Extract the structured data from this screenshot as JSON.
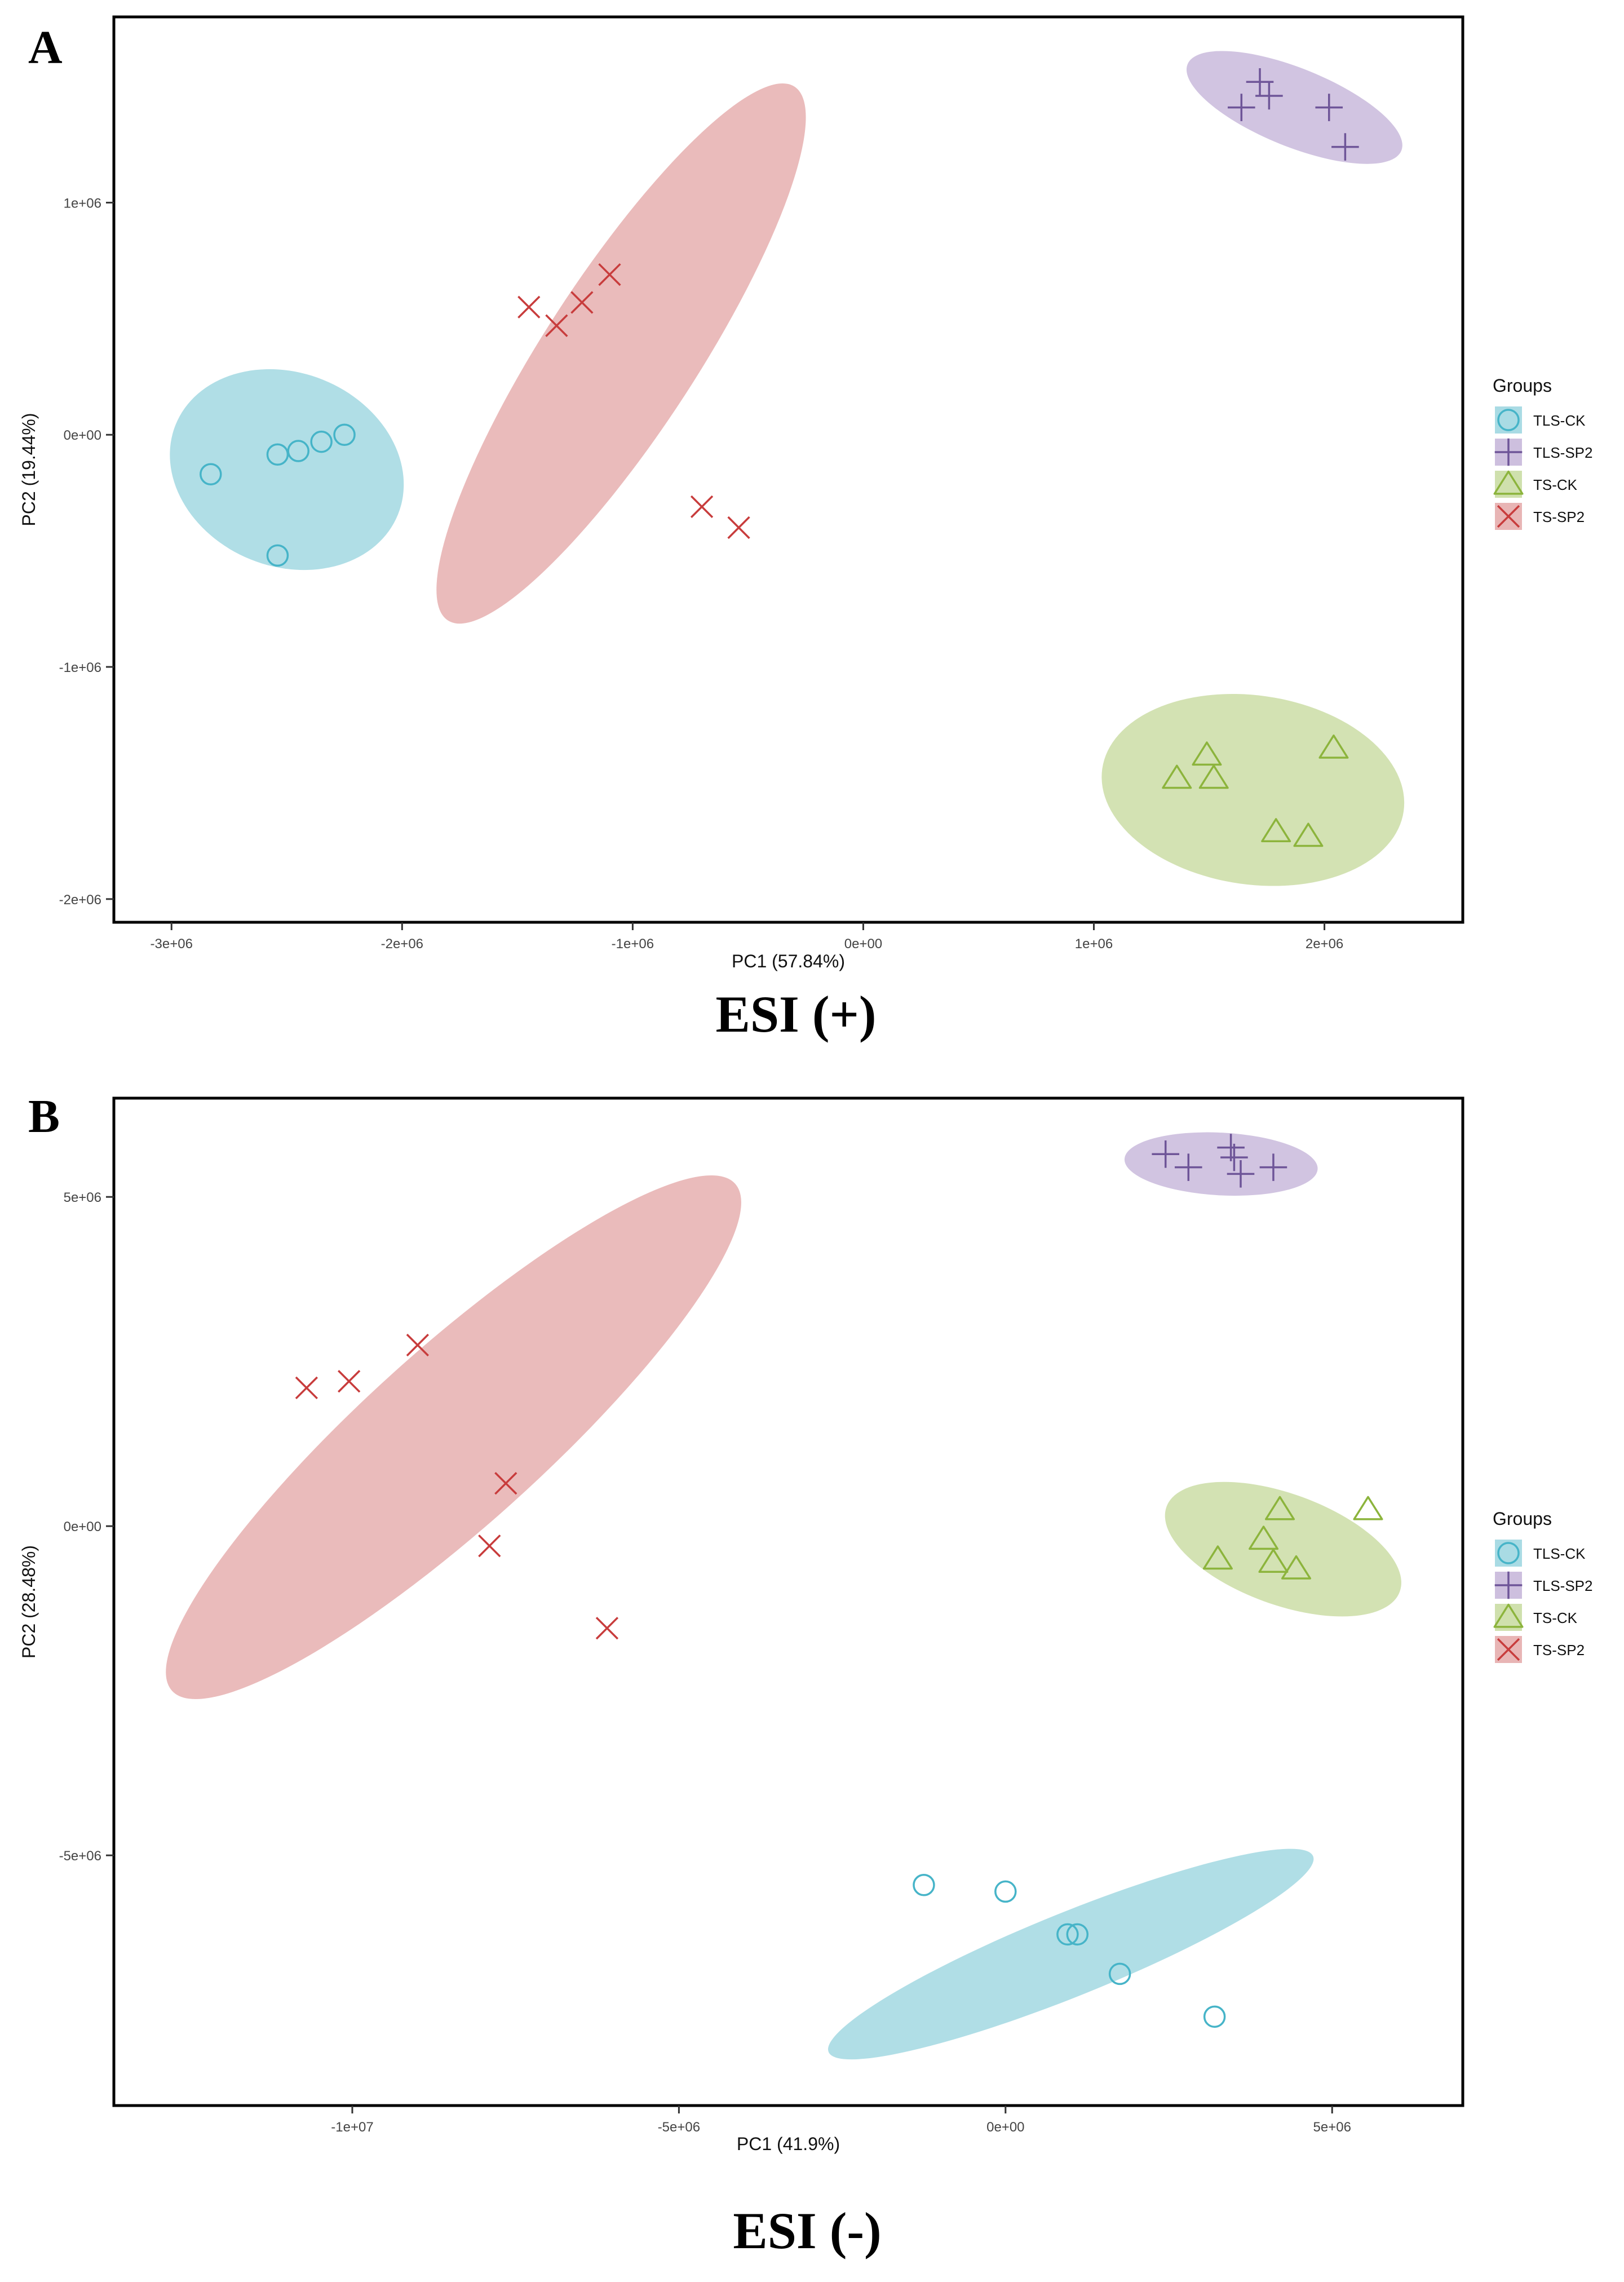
{
  "colors": {
    "TLS-CK": "#46b4c8",
    "TLS-SP2": "#6e5598",
    "TS-CK": "#8cb43c",
    "TS-SP2": "#c83c3c",
    "ellipse_TLS-CK": "#a9dbe4",
    "ellipse_TLS-SP2": "#cdbfde",
    "ellipse_TS-CK": "#cfe0ad",
    "ellipse_TS-SP2": "#e8b5b5"
  },
  "legend": {
    "title": "Groups",
    "items": [
      {
        "label": "TLS-CK",
        "shape": "circle"
      },
      {
        "label": "TLS-SP2",
        "shape": "plus"
      },
      {
        "label": "TS-CK",
        "shape": "triangle"
      },
      {
        "label": "TS-SP2",
        "shape": "cross"
      }
    ]
  },
  "panels": [
    {
      "letter": "A",
      "caption": "ESI (+)"
    },
    {
      "letter": "B",
      "caption": "ESI (-)"
    }
  ],
  "chart_data": [
    {
      "type": "scatter",
      "panel": "A",
      "title": "ESI (+)",
      "xlabel": "PC1 (57.84%)",
      "ylabel": "PC2 (19.44%)",
      "xlim": [
        -3250000,
        2600000
      ],
      "ylim": [
        -2100000,
        1800000
      ],
      "xticks": [
        -3000000,
        -2000000,
        -1000000,
        0,
        1000000,
        2000000
      ],
      "xtick_labels": [
        "-3e+06",
        "-2e+06",
        "-1e+06",
        "0e+00",
        "1e+06",
        "2e+06"
      ],
      "yticks": [
        -2000000,
        -1000000,
        0,
        1000000
      ],
      "ytick_labels": [
        "-2e+06",
        "-1e+06",
        "0e+00",
        "1e+06"
      ],
      "legend_position": "right",
      "series": [
        {
          "name": "TLS-CK",
          "marker": "circle",
          "points": [
            [
              -2830000,
              -170000
            ],
            [
              -2540000,
              -85000
            ],
            [
              -2450000,
              -70000
            ],
            [
              -2350000,
              -30000
            ],
            [
              -2250000,
              0
            ],
            [
              -2540000,
              -520000
            ]
          ],
          "ellipse": {
            "cx": -2500000,
            "cy": -150000,
            "rx": 520000,
            "ry": 420000,
            "angle": -22
          }
        },
        {
          "name": "TLS-SP2",
          "marker": "plus",
          "points": [
            [
              1640000,
              1410000
            ],
            [
              1720000,
              1520000
            ],
            [
              1760000,
              1460000
            ],
            [
              2020000,
              1410000
            ],
            [
              2090000,
              1240000
            ]
          ],
          "ellipse": {
            "cx": 1870000,
            "cy": 1410000,
            "rx": 500000,
            "ry": 170000,
            "angle": -22
          }
        },
        {
          "name": "TS-CK",
          "marker": "triangle",
          "points": [
            [
              1360000,
              -1480000
            ],
            [
              1490000,
              -1380000
            ],
            [
              1520000,
              -1480000
            ],
            [
              1790000,
              -1710000
            ],
            [
              1930000,
              -1730000
            ],
            [
              2040000,
              -1350000
            ]
          ],
          "ellipse": {
            "cx": 1690000,
            "cy": -1530000,
            "rx": 660000,
            "ry": 410000,
            "angle": -8
          }
        },
        {
          "name": "TS-SP2",
          "marker": "cross",
          "points": [
            [
              -1450000,
              550000
            ],
            [
              -1330000,
              470000
            ],
            [
              -1220000,
              570000
            ],
            [
              -1100000,
              690000
            ],
            [
              -700000,
              -310000
            ],
            [
              -540000,
              -400000
            ]
          ],
          "ellipse": {
            "cx": -1050000,
            "cy": 350000,
            "rx": 1380000,
            "ry": 330000,
            "angle": 57
          }
        }
      ]
    },
    {
      "type": "scatter",
      "panel": "B",
      "title": "ESI (-)",
      "xlabel": "PC1 (41.9%)",
      "ylabel": "PC2 (28.48%)",
      "xlim": [
        -13650000,
        7000000
      ],
      "ylim": [
        -8800000,
        6500000
      ],
      "xticks": [
        -10000000,
        -5000000,
        0,
        5000000
      ],
      "xtick_labels": [
        "-1e+07",
        "-5e+06",
        "0e+00",
        "5e+06"
      ],
      "yticks": [
        -5000000,
        0,
        5000000
      ],
      "ytick_labels": [
        "-5e+06",
        "0e+00",
        "5e+06"
      ],
      "legend_position": "right",
      "series": [
        {
          "name": "TLS-CK",
          "marker": "circle",
          "points": [
            [
              -1250000,
              -5450000
            ],
            [
              0,
              -5550000
            ],
            [
              950000,
              -6200000
            ],
            [
              1100000,
              -6200000
            ],
            [
              1750000,
              -6800000
            ],
            [
              3200000,
              -7450000
            ]
          ],
          "ellipse": {
            "cx": 1000000,
            "cy": -6500000,
            "rx": 4000000,
            "ry": 640000,
            "angle": 22
          }
        },
        {
          "name": "TLS-SP2",
          "marker": "plus",
          "points": [
            [
              2450000,
              5650000
            ],
            [
              2800000,
              5450000
            ],
            [
              3450000,
              5750000
            ],
            [
              3500000,
              5600000
            ],
            [
              3600000,
              5350000
            ],
            [
              4100000,
              5450000
            ]
          ],
          "ellipse": {
            "cx": 3300000,
            "cy": 5500000,
            "rx": 1480000,
            "ry": 480000,
            "angle": -3
          }
        },
        {
          "name": "TS-CK",
          "marker": "triangle",
          "points": [
            [
              3250000,
              -500000
            ],
            [
              3950000,
              -200000
            ],
            [
              4100000,
              -550000
            ],
            [
              4200000,
              250000
            ],
            [
              4450000,
              -650000
            ],
            [
              5550000,
              250000
            ]
          ],
          "ellipse": {
            "cx": 4250000,
            "cy": -350000,
            "rx": 1900000,
            "ry": 850000,
            "angle": -20
          }
        },
        {
          "name": "TS-SP2",
          "marker": "cross",
          "points": [
            [
              -10700000,
              2100000
            ],
            [
              -10050000,
              2200000
            ],
            [
              -9000000,
              2750000
            ],
            [
              -7650000,
              650000
            ],
            [
              -7900000,
              -300000
            ],
            [
              -6100000,
              -1550000
            ]
          ],
          "ellipse": {
            "cx": -8450000,
            "cy": 1350000,
            "rx": 5800000,
            "ry": 1350000,
            "angle": 42
          }
        }
      ]
    }
  ]
}
